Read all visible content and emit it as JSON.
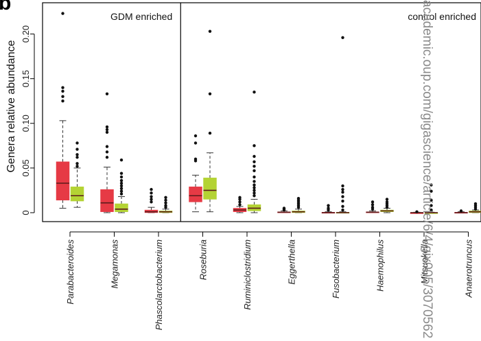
{
  "figure_letter": "b",
  "watermark": "academic.oup.com/gigascience/article/6/4/gix005/3070562",
  "colors": {
    "red": "#e63a45",
    "green": "#b4d334",
    "median": "#5a1a1a",
    "outlier": "#111111"
  },
  "chart_data": {
    "type": "box",
    "ylabel": "Genera relative abundance",
    "ylim": [
      -0.01,
      0.235
    ],
    "yticks": [
      0,
      0.05,
      0.1,
      0.15,
      0.2
    ],
    "ytick_labels": [
      "0",
      "0.05",
      "0.10",
      "0.15",
      "0.20"
    ],
    "panels": [
      {
        "label": "GDM enriched",
        "categories": [
          "Parabacteroides",
          "Megamonas",
          "Phascolarctobacterium"
        ]
      },
      {
        "label": "control enriched",
        "categories": [
          "Roseburia",
          "Ruminiclostridium",
          "Eggerthella",
          "Fusobacterium",
          "Haemophilus",
          "Mitsuokella",
          "Anaerotruncus"
        ]
      }
    ],
    "categories": [
      "Parabacteroides",
      "Megamonas",
      "Phascolarctobacterium",
      "Roseburia",
      "Ruminiclostridium",
      "Eggerthella",
      "Fusobacterium",
      "Haemophilus",
      "Mitsuokella",
      "Anaerotruncus"
    ],
    "boxes": [
      [
        {
          "whislo": 0.005,
          "q1": 0.014,
          "med": 0.033,
          "q3": 0.057,
          "whishi": 0.103,
          "fliers": [
            0.125,
            0.13,
            0.136,
            0.14,
            0.223
          ]
        },
        {
          "whislo": 0.006,
          "q1": 0.013,
          "med": 0.019,
          "q3": 0.029,
          "whishi": 0.05,
          "fliers": [
            0.052,
            0.055,
            0.062,
            0.065,
            0.071,
            0.078
          ]
        }
      ],
      [
        {
          "whislo": 0.0,
          "q1": 0.001,
          "med": 0.011,
          "q3": 0.026,
          "whishi": 0.051,
          "fliers": [
            0.062,
            0.068,
            0.074,
            0.09,
            0.093,
            0.096,
            0.133
          ]
        },
        {
          "whislo": 0.0,
          "q1": 0.001,
          "med": 0.004,
          "q3": 0.01,
          "whishi": 0.018,
          "fliers": [
            0.021,
            0.024,
            0.027,
            0.03,
            0.033,
            0.036,
            0.04,
            0.044,
            0.059
          ]
        }
      ],
      [
        {
          "whislo": 0.0,
          "q1": 0.0,
          "med": 0.001,
          "q3": 0.003,
          "whishi": 0.006,
          "fliers": [
            0.012,
            0.015,
            0.018,
            0.022,
            0.026
          ]
        },
        {
          "whislo": 0.0,
          "q1": 0.0,
          "med": 0.001,
          "q3": 0.002,
          "whishi": 0.004,
          "fliers": [
            0.006,
            0.008,
            0.011,
            0.014,
            0.017
          ]
        }
      ],
      [
        {
          "whislo": 0.001,
          "q1": 0.012,
          "med": 0.019,
          "q3": 0.029,
          "whishi": 0.042,
          "fliers": [
            0.058,
            0.06,
            0.078,
            0.086
          ]
        },
        {
          "whislo": 0.001,
          "q1": 0.015,
          "med": 0.025,
          "q3": 0.039,
          "whishi": 0.067,
          "fliers": [
            0.089,
            0.133,
            0.203
          ]
        }
      ],
      [
        {
          "whislo": 0.0,
          "q1": 0.001,
          "med": 0.003,
          "q3": 0.005,
          "whishi": 0.007,
          "fliers": [
            0.009,
            0.012,
            0.015,
            0.017
          ]
        },
        {
          "whislo": 0.0,
          "q1": 0.002,
          "med": 0.005,
          "q3": 0.009,
          "whishi": 0.015,
          "fliers": [
            0.019,
            0.022,
            0.025,
            0.028,
            0.031,
            0.035,
            0.04,
            0.047,
            0.052,
            0.057,
            0.063,
            0.075,
            0.135
          ]
        }
      ],
      [
        {
          "whislo": 0.0,
          "q1": 0.0,
          "med": 0.0005,
          "q3": 0.001,
          "whishi": 0.002,
          "fliers": [
            0.003,
            0.004,
            0.005
          ]
        },
        {
          "whislo": 0.0,
          "q1": 0.0,
          "med": 0.001,
          "q3": 0.002,
          "whishi": 0.004,
          "fliers": [
            0.006,
            0.008,
            0.01,
            0.012,
            0.014,
            0.016
          ]
        }
      ],
      [
        {
          "whislo": 0.0,
          "q1": 0.0,
          "med": 0.0,
          "q3": 0.0005,
          "whishi": 0.001,
          "fliers": [
            0.003,
            0.005,
            0.008
          ]
        },
        {
          "whislo": 0.0,
          "q1": 0.0,
          "med": 0.0,
          "q3": 0.0005,
          "whishi": 0.001,
          "fliers": [
            0.003,
            0.007,
            0.013,
            0.018,
            0.023,
            0.026,
            0.03,
            0.196
          ]
        }
      ],
      [
        {
          "whislo": 0.0,
          "q1": 0.0,
          "med": 0.0005,
          "q3": 0.001,
          "whishi": 0.002,
          "fliers": [
            0.004,
            0.006,
            0.009,
            0.012
          ]
        },
        {
          "whislo": 0.0,
          "q1": 0.001,
          "med": 0.002,
          "q3": 0.003,
          "whishi": 0.005,
          "fliers": [
            0.006,
            0.008,
            0.01,
            0.012,
            0.015
          ]
        }
      ],
      [
        {
          "whislo": 0.0,
          "q1": 0.0,
          "med": 0.0,
          "q3": 0.0,
          "whishi": 0.0005,
          "fliers": [
            0.001
          ]
        },
        {
          "whislo": 0.0,
          "q1": 0.0,
          "med": 0.0,
          "q3": 0.0,
          "whishi": 0.0005,
          "fliers": [
            0.003,
            0.008,
            0.014,
            0.024,
            0.031
          ]
        }
      ],
      [
        {
          "whislo": 0.0,
          "q1": 0.0,
          "med": 0.0,
          "q3": 0.0005,
          "whishi": 0.001,
          "fliers": [
            0.002
          ]
        },
        {
          "whislo": 0.0,
          "q1": 0.0,
          "med": 0.001,
          "q3": 0.002,
          "whishi": 0.003,
          "fliers": [
            0.004,
            0.006,
            0.008,
            0.01
          ]
        }
      ]
    ]
  }
}
